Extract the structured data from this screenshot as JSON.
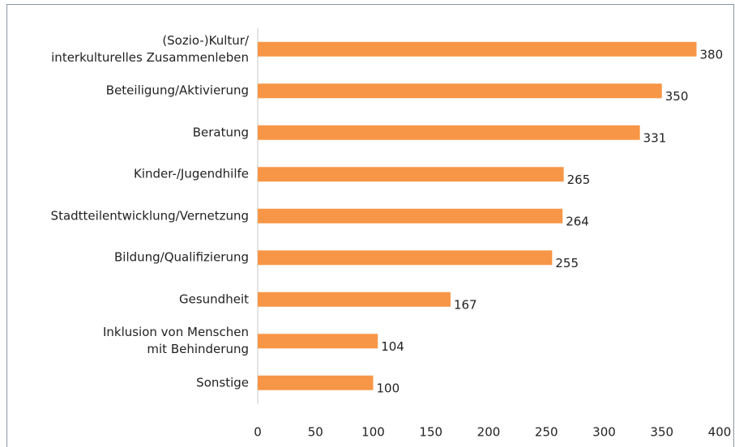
{
  "chart_data": {
    "type": "barh",
    "categories": [
      "(Sozio-)Kultur/\ninterkulturelles Zusammenleben",
      "Beteiligung/Aktivierung",
      "Beratung",
      "Kinder-/Jugendhilfe",
      "Stadtteilentwicklung/Vernetzung",
      "Bildung/Qualifizierung",
      "Gesundheit",
      "Inklusion von Menschen\nmit Behinderung",
      "Sonstige"
    ],
    "values": [
      380,
      350,
      331,
      265,
      264,
      255,
      167,
      104,
      100
    ],
    "color": "#f79646",
    "xlim": [
      0,
      400
    ],
    "xticks": [
      0,
      50,
      100,
      150,
      200,
      250,
      300,
      350,
      400
    ],
    "grid": false,
    "data_labels": true
  }
}
